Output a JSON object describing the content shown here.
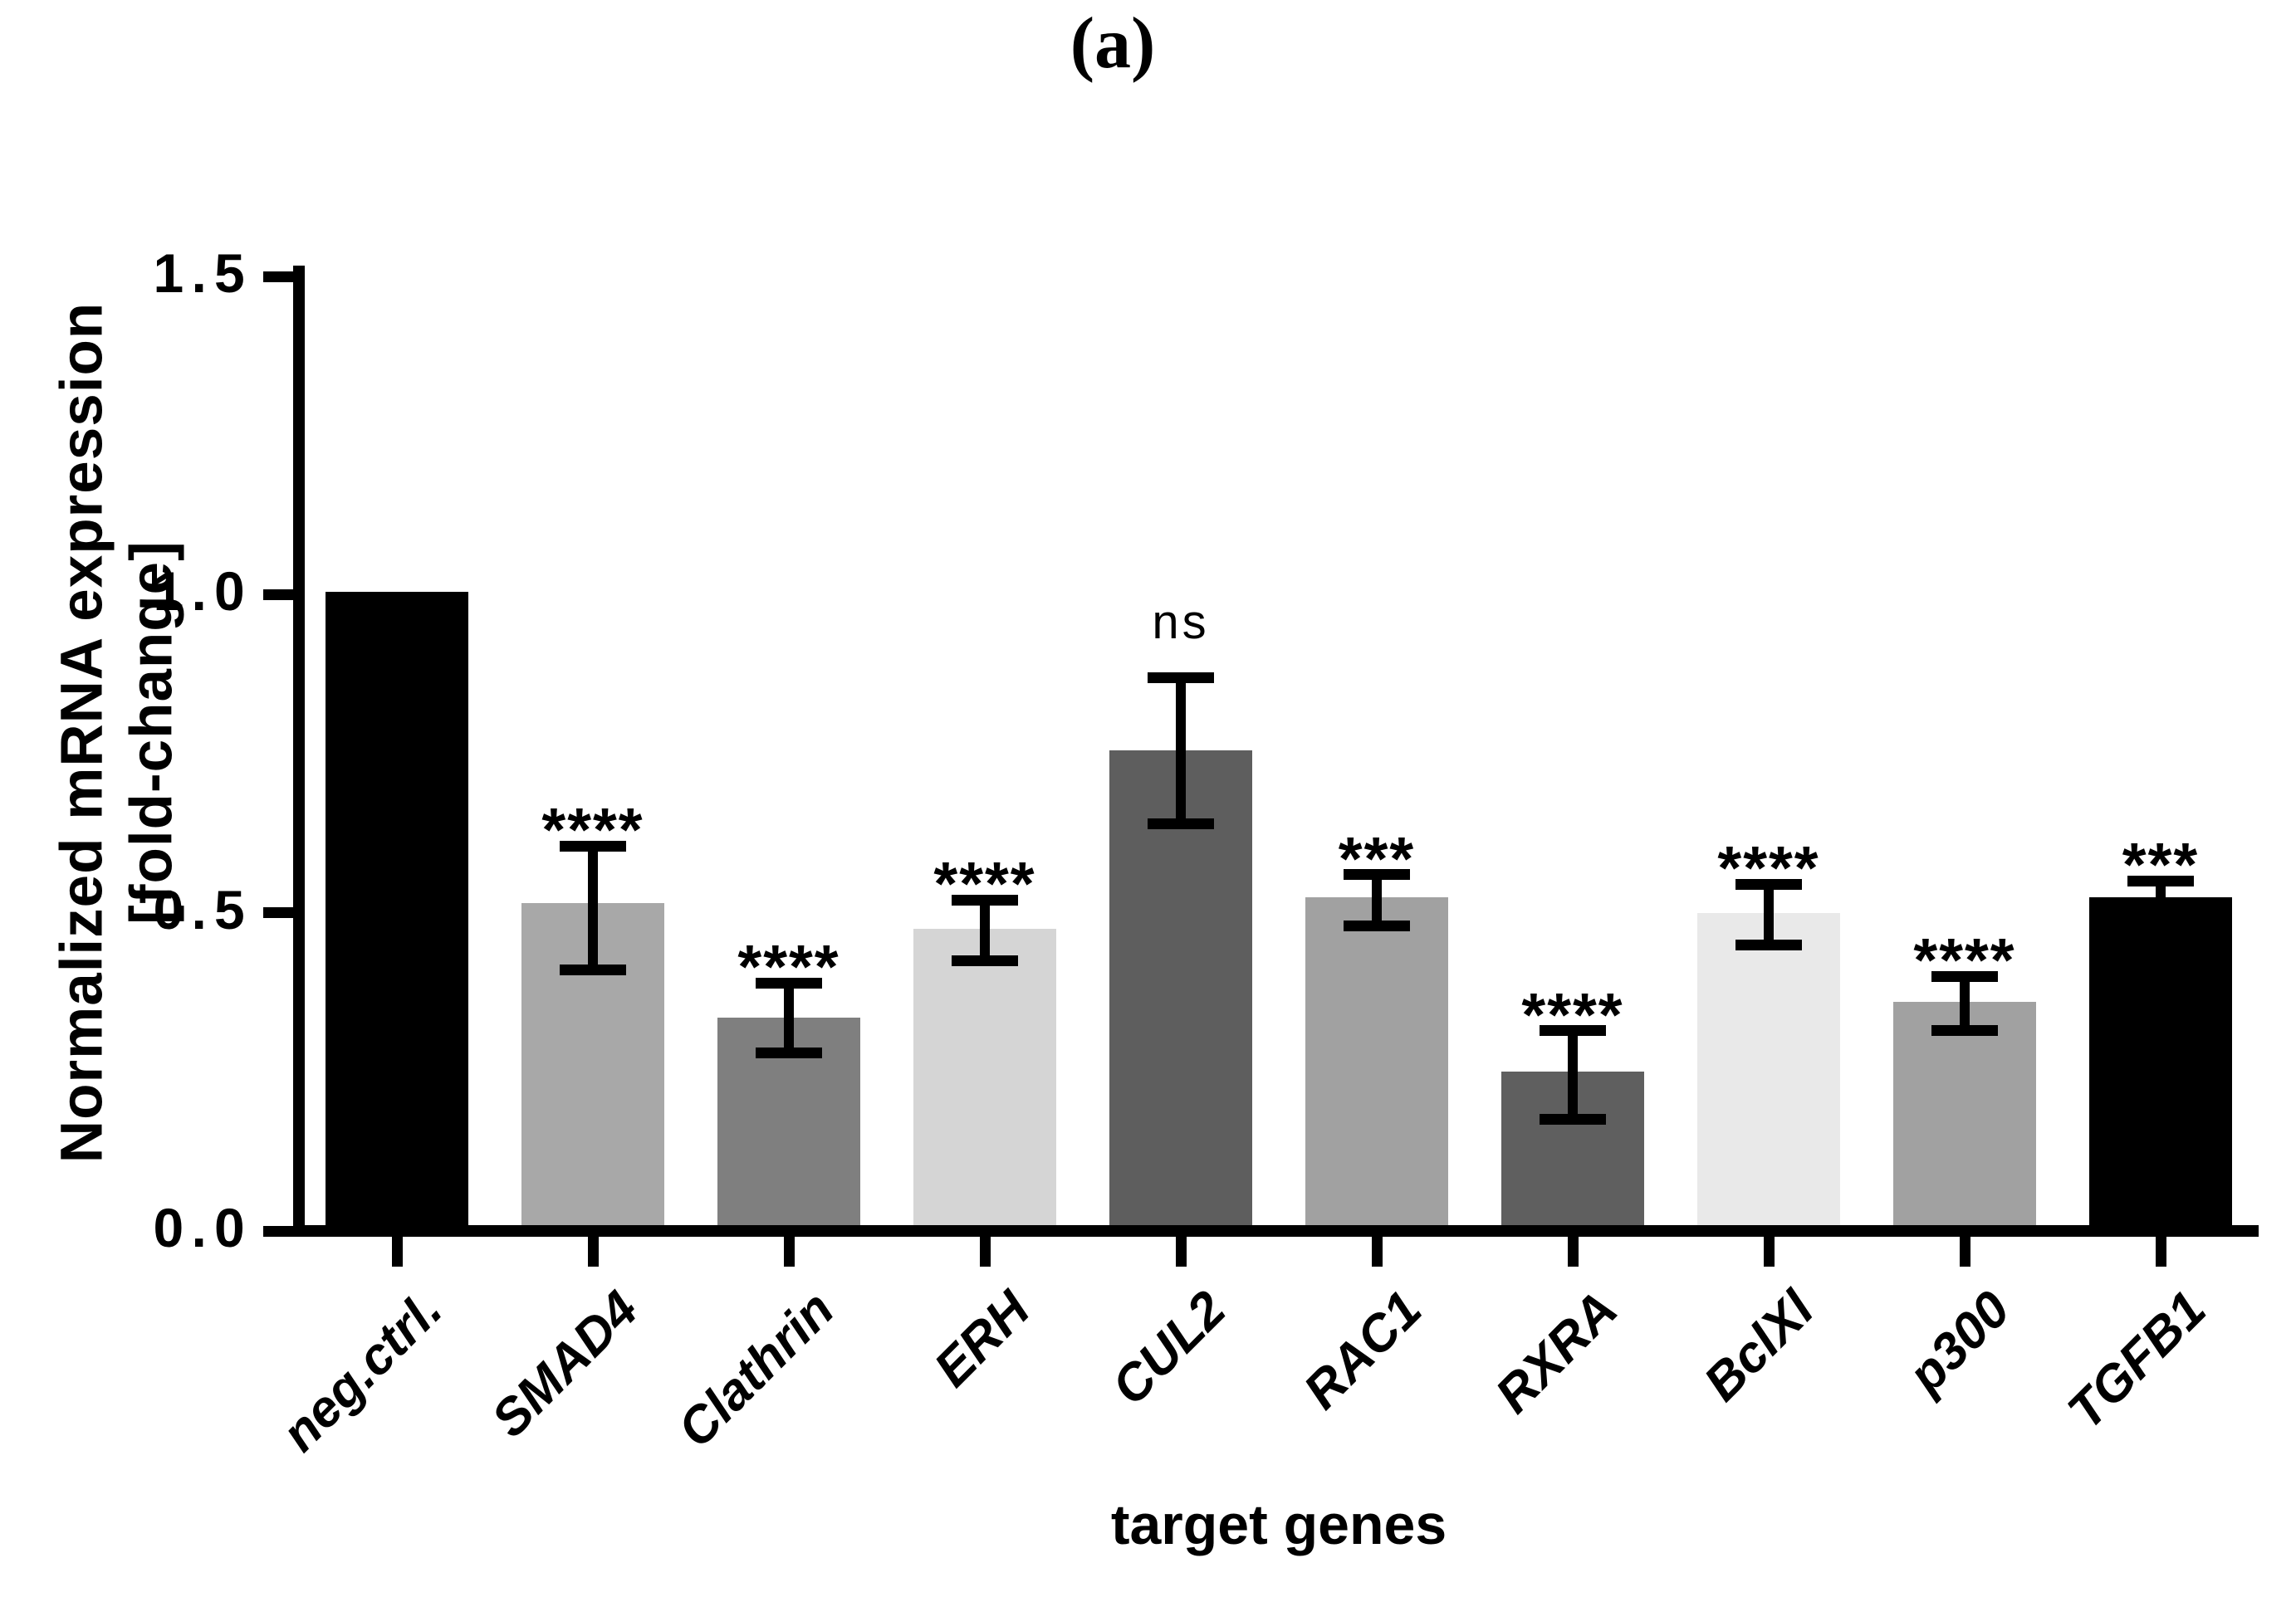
{
  "figure": {
    "panel_label": "(a)",
    "y_axis": {
      "label_line1": "Normalized mRNA expression",
      "label_line2": "[fold-change]",
      "tick_labels": [
        "1.5",
        "1.0",
        "0.5",
        "0.0"
      ],
      "tick_values": [
        1.5,
        1.0,
        0.5,
        0.0
      ],
      "min": 0.0,
      "max": 1.5
    },
    "x_axis": {
      "title": "target genes"
    }
  },
  "chart_data": {
    "type": "bar",
    "title": "(a)",
    "xlabel": "target genes",
    "ylabel": "Normalized mRNA expression [fold-change]",
    "ylim": [
      0,
      1.5
    ],
    "yticks": [
      0.0,
      0.5,
      1.0,
      1.5
    ],
    "grid": false,
    "legend": "none",
    "categories": [
      "neg.ctrl.",
      "SMAD4",
      "Clathrin",
      "ERH",
      "CUL2",
      "RAC1",
      "RXRA",
      "BclXl",
      "p300",
      "TGFB1"
    ],
    "series": [
      {
        "name": "Normalized mRNA expression [fold-change]",
        "values": [
          1.005,
          0.515,
          0.335,
          0.475,
          0.755,
          0.525,
          0.25,
          0.5,
          0.36,
          0.525
        ]
      }
    ],
    "bars": [
      {
        "label": "neg.ctrl.",
        "value": 1.005,
        "error_up": 0,
        "error_down": 0,
        "significance": "",
        "color": "#000000"
      },
      {
        "label": "SMAD4",
        "value": 0.515,
        "error_up": 0.09,
        "error_down": 0.105,
        "significance": "****",
        "color": "#a8a8a8"
      },
      {
        "label": "Clathrin",
        "value": 0.335,
        "error_up": 0.055,
        "error_down": 0.055,
        "significance": "****",
        "color": "#7f7f7f"
      },
      {
        "label": "ERH",
        "value": 0.475,
        "error_up": 0.045,
        "error_down": 0.05,
        "significance": "****",
        "color": "#d5d5d5"
      },
      {
        "label": "CUL2",
        "value": 0.755,
        "error_up": 0.115,
        "error_down": 0.115,
        "significance": "ns",
        "color": "#5e5e5e"
      },
      {
        "label": "RAC1",
        "value": 0.525,
        "error_up": 0.035,
        "error_down": 0.045,
        "significance": "***",
        "color": "#a1a1a1"
      },
      {
        "label": "RXRA",
        "value": 0.25,
        "error_up": 0.065,
        "error_down": 0.075,
        "significance": "****",
        "color": "#5f5f5f"
      },
      {
        "label": "BclXl",
        "value": 0.5,
        "error_up": 0.045,
        "error_down": 0.05,
        "significance": "****",
        "color": "#e9e9e9"
      },
      {
        "label": "p300",
        "value": 0.36,
        "error_up": 0.04,
        "error_down": 0.045,
        "significance": "****",
        "color": "#a1a1a1"
      },
      {
        "label": "TGFB1",
        "value": 0.525,
        "error_up": 0.025,
        "error_down": 0.025,
        "significance": "***",
        "color": "#000000"
      }
    ]
  }
}
